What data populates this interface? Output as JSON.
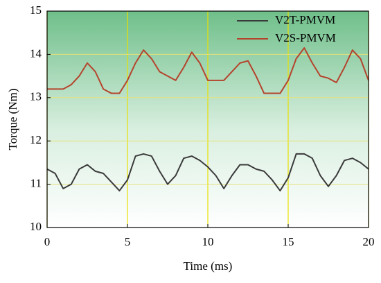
{
  "chart_data": {
    "type": "line",
    "xlabel": "Time (ms)",
    "ylabel": "Torque (Nm)",
    "x": [
      0,
      0.5,
      1,
      1.5,
      2,
      2.5,
      3,
      3.5,
      4,
      4.5,
      5,
      5.5,
      6,
      6.5,
      7,
      7.5,
      8,
      8.5,
      9,
      9.5,
      10,
      10.5,
      11,
      11.5,
      12,
      12.5,
      13,
      13.5,
      14,
      14.5,
      15,
      15.5,
      16,
      16.5,
      17,
      17.5,
      18,
      18.5,
      19,
      19.5,
      20
    ],
    "series": [
      {
        "name": "V2T-PMVM",
        "color": "#3a3a3a",
        "values": [
          11.35,
          11.25,
          10.9,
          11.0,
          11.35,
          11.45,
          11.3,
          11.25,
          11.05,
          10.85,
          11.1,
          11.65,
          11.7,
          11.65,
          11.3,
          11.0,
          11.2,
          11.6,
          11.65,
          11.55,
          11.4,
          11.2,
          10.9,
          11.2,
          11.45,
          11.45,
          11.35,
          11.3,
          11.1,
          10.85,
          11.15,
          11.7,
          11.7,
          11.6,
          11.2,
          10.95,
          11.2,
          11.55,
          11.6,
          11.5,
          11.35
        ]
      },
      {
        "name": "V2S-PMVM",
        "color": "#b5432c",
        "values": [
          13.2,
          13.2,
          13.2,
          13.3,
          13.5,
          13.8,
          13.6,
          13.2,
          13.1,
          13.1,
          13.4,
          13.8,
          14.1,
          13.9,
          13.6,
          13.5,
          13.4,
          13.7,
          14.05,
          13.8,
          13.4,
          13.4,
          13.4,
          13.6,
          13.8,
          13.85,
          13.5,
          13.1,
          13.1,
          13.1,
          13.4,
          13.9,
          14.15,
          13.8,
          13.5,
          13.45,
          13.35,
          13.7,
          14.1,
          13.9,
          13.4
        ]
      }
    ],
    "xlim": [
      0,
      20
    ],
    "xticks": [
      0,
      5,
      10,
      15,
      20
    ],
    "ylim": [
      10,
      15
    ],
    "yticks": [
      10,
      11,
      12,
      13,
      14,
      15
    ],
    "grid": true,
    "legend": "upper right"
  }
}
